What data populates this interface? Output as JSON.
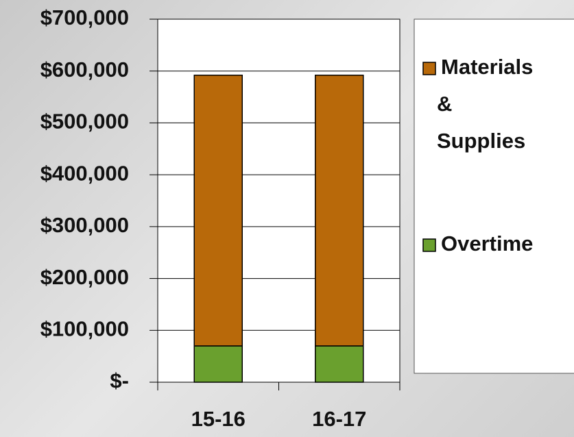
{
  "chart_data": {
    "type": "stacked_bar",
    "categories": [
      "15-16",
      "16-17"
    ],
    "series": [
      {
        "name": "Overtime",
        "color": "#6aa02e",
        "values": [
          70000,
          70000
        ]
      },
      {
        "name": "Materials & Supplies",
        "color": "#b8690a",
        "values": [
          522000,
          522000
        ]
      }
    ],
    "ylim": [
      0,
      700000
    ],
    "yticks": [
      {
        "value": 0,
        "label": "$-"
      },
      {
        "value": 100000,
        "label": "$100,000"
      },
      {
        "value": 200000,
        "label": "$200,000"
      },
      {
        "value": 300000,
        "label": "$300,000"
      },
      {
        "value": 400000,
        "label": "$400,000"
      },
      {
        "value": 500000,
        "label": "$500,000"
      },
      {
        "value": 600000,
        "label": "$600,000"
      },
      {
        "value": 700000,
        "label": "$700,000"
      }
    ],
    "grid": true,
    "legend": "right"
  }
}
